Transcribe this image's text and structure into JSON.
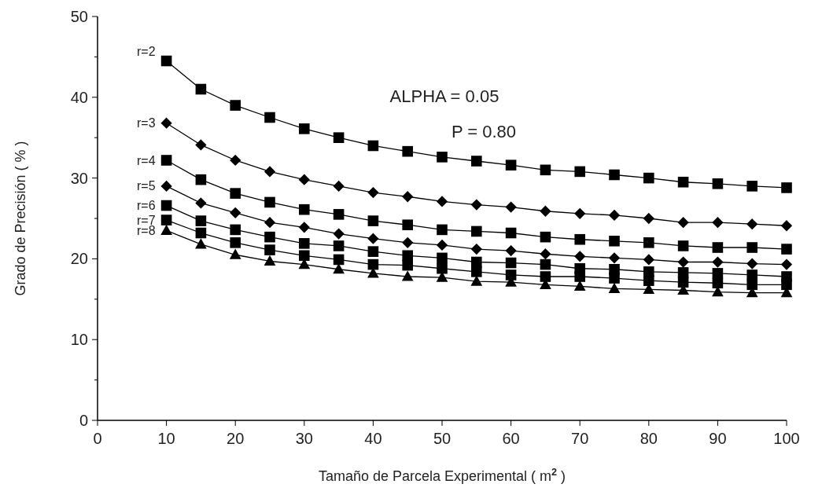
{
  "chart_data": {
    "type": "line",
    "xlabel": "Tamaño de Parcela Experimental ( m$^{2}$ )",
    "ylabel": "Grado de Precisión ( % )",
    "annotations": [
      "ALPHA = 0.05",
      "P = 0.80"
    ],
    "x": [
      10,
      15,
      20,
      25,
      30,
      35,
      40,
      45,
      50,
      55,
      60,
      65,
      70,
      75,
      80,
      85,
      90,
      95,
      100
    ],
    "xlim": [
      0,
      100
    ],
    "xticks": [
      0,
      10,
      20,
      30,
      40,
      50,
      60,
      70,
      80,
      90,
      100
    ],
    "ylim": [
      0,
      50
    ],
    "yticks": [
      0,
      {
        "value": 5,
        "label": null
      },
      10,
      {
        "value": 15,
        "label": null
      },
      20,
      {
        "value": 25,
        "label": null
      },
      30,
      {
        "value": 35,
        "label": null
      },
      40,
      {
        "value": 45,
        "label": null
      },
      50
    ],
    "grid": false,
    "series": [
      {
        "name": "r=2",
        "color": "#000000",
        "marker": "square",
        "values": [
          44.5,
          41.0,
          39.0,
          37.5,
          36.1,
          35.0,
          34.0,
          33.3,
          32.6,
          32.1,
          31.6,
          31.0,
          30.8,
          30.4,
          30.0,
          29.5,
          29.3,
          29.0,
          28.8
        ]
      },
      {
        "name": "r=3",
        "color": "#000000",
        "marker": "diamond",
        "values": [
          36.8,
          34.1,
          32.2,
          30.8,
          29.8,
          29.0,
          28.2,
          27.7,
          27.1,
          26.7,
          26.4,
          25.9,
          25.6,
          25.4,
          25.0,
          24.5,
          24.5,
          24.3,
          24.1
        ]
      },
      {
        "name": "r=4",
        "color": "#000000",
        "marker": "square",
        "values": [
          32.2,
          29.8,
          28.1,
          27.0,
          26.1,
          25.5,
          24.7,
          24.2,
          23.6,
          23.4,
          23.2,
          22.7,
          22.4,
          22.2,
          22.0,
          21.6,
          21.4,
          21.4,
          21.2
        ]
      },
      {
        "name": "r=5",
        "color": "#000000",
        "marker": "diamond",
        "values": [
          29.0,
          26.9,
          25.7,
          24.5,
          23.9,
          23.1,
          22.5,
          22.0,
          21.7,
          21.2,
          21.0,
          20.6,
          20.3,
          20.1,
          19.9,
          19.6,
          19.6,
          19.4,
          19.3
        ]
      },
      {
        "name": "r=6",
        "color": "#000000",
        "marker": "square",
        "values": [
          26.6,
          24.7,
          23.6,
          22.7,
          21.9,
          21.6,
          20.9,
          20.4,
          20.1,
          19.6,
          19.5,
          19.3,
          18.8,
          18.7,
          18.4,
          18.3,
          18.2,
          18.0,
          17.8
        ]
      },
      {
        "name": "r=7",
        "color": "#000000",
        "marker": "square",
        "values": [
          24.8,
          23.2,
          22.0,
          21.1,
          20.4,
          19.9,
          19.3,
          19.2,
          18.8,
          18.4,
          18.0,
          17.8,
          17.8,
          17.6,
          17.3,
          17.1,
          17.0,
          16.8,
          16.8
        ]
      },
      {
        "name": "r=8",
        "color": "#000000",
        "marker": "triangle",
        "values": [
          23.5,
          21.8,
          20.5,
          19.7,
          19.3,
          18.7,
          18.2,
          17.8,
          17.7,
          17.2,
          17.1,
          16.8,
          16.6,
          16.3,
          16.2,
          16.1,
          15.9,
          15.8,
          15.8
        ]
      }
    ]
  }
}
